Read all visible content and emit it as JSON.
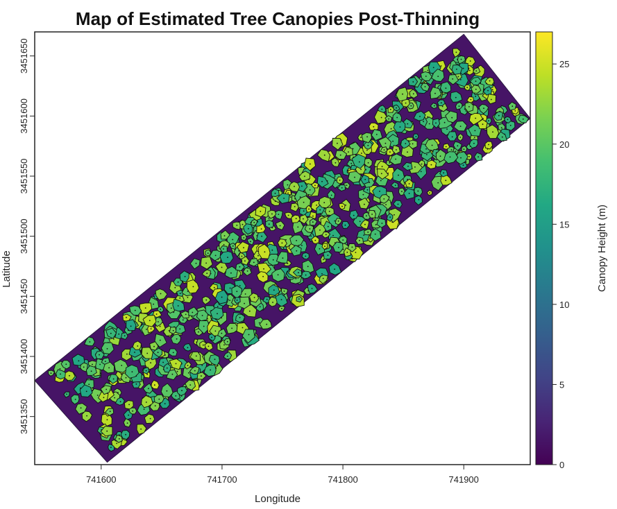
{
  "chart_data": {
    "type": "heatmap",
    "title": "Map of Estimated Tree Canopies Post-Thinning",
    "xlabel": "Longitude",
    "ylabel": "Latitude",
    "xlim": [
      741545,
      741955
    ],
    "ylim": [
      3451310,
      3451670
    ],
    "x_ticks": [
      741600,
      741700,
      741800,
      741900
    ],
    "y_ticks": [
      3451350,
      3451400,
      3451450,
      3451500,
      3451550,
      3451600,
      3451650
    ],
    "colorbar": {
      "label": "Canopy Height (m)",
      "min": 0,
      "max": 27,
      "ticks": [
        0,
        5,
        10,
        15,
        20,
        25
      ],
      "colors": [
        "#440154",
        "#482475",
        "#414487",
        "#355f8d",
        "#2a788e",
        "#21918c",
        "#22a884",
        "#44bf70",
        "#7ad151",
        "#bddf26",
        "#fde725"
      ]
    },
    "strip_corners": [
      {
        "x": 741545,
        "y": 3451380
      },
      {
        "x": 741900,
        "y": 3451668
      },
      {
        "x": 741955,
        "y": 3451598
      },
      {
        "x": 741605,
        "y": 3451312
      }
    ],
    "background_height": 1.5,
    "crown_height_range": [
      16,
      25
    ],
    "grid": false,
    "legend": "right"
  }
}
